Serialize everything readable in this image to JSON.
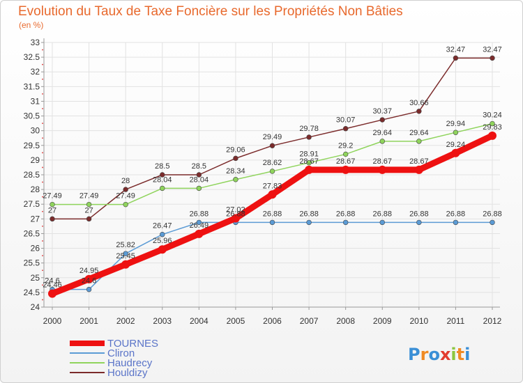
{
  "chart_data": {
    "type": "line",
    "title": "Evolution du Taux de Taxe Foncière sur les Propriétés Non Bâties",
    "subtitle": "(en %)",
    "xlabel": "",
    "ylabel": "",
    "grid": true,
    "categories": [
      "2000",
      "2001",
      "2002",
      "2003",
      "2004",
      "2005",
      "2006",
      "2007",
      "2008",
      "2009",
      "2010",
      "2011",
      "2012"
    ],
    "ylim": [
      24,
      33
    ],
    "yticks": [
      "24",
      "24.5",
      "25",
      "25.5",
      "26",
      "26.5",
      "27",
      "27.5",
      "28",
      "28.5",
      "29",
      "29.5",
      "30",
      "30.5",
      "31",
      "31.5",
      "32",
      "32.5",
      "33"
    ],
    "series": [
      {
        "name": "TOURNES",
        "color": "#ee1111",
        "values": [
          24.46,
          24.95,
          25.45,
          25.96,
          26.49,
          27.02,
          27.83,
          28.67,
          28.67,
          28.67,
          28.67,
          29.24,
          29.83
        ],
        "labels": [
          "24.46",
          "24.95",
          "25.45",
          "25.96",
          "26.49",
          "27.02",
          "27.83",
          "28.67",
          "28.67",
          "28.67",
          "28.67",
          "29.24",
          "29.83"
        ]
      },
      {
        "name": "Cliron",
        "color": "#5b9bd5",
        "values": [
          24.6,
          24.6,
          25.82,
          26.47,
          26.88,
          26.88,
          26.88,
          26.88,
          26.88,
          26.88,
          26.88,
          26.88,
          26.88
        ],
        "labels": [
          "24.6",
          "24.6",
          "25.82",
          "26.47",
          "26.88",
          "26.88",
          "26.88",
          "26.88",
          "26.88",
          "26.88",
          "26.88",
          "26.88",
          "26.88"
        ]
      },
      {
        "name": "Haudrecy",
        "color": "#8fd45c",
        "values": [
          27.49,
          27.49,
          27.49,
          28.04,
          28.04,
          28.34,
          28.62,
          28.91,
          29.2,
          29.64,
          29.64,
          29.94,
          30.24
        ],
        "labels": [
          "27.49",
          "27.49",
          "27.49",
          "28.04",
          "28.04",
          "28.34",
          "28.62",
          "28.91",
          "29.2",
          "29.64",
          "29.64",
          "29.94",
          "30.24"
        ]
      },
      {
        "name": "Houldizy",
        "color": "#7b2b2b",
        "values": [
          27,
          27,
          28,
          28.5,
          28.5,
          29.06,
          29.49,
          29.78,
          30.07,
          30.37,
          30.66,
          32.47,
          32.47
        ],
        "labels": [
          "27",
          "27",
          "28",
          "28.5",
          "28.5",
          "29.06",
          "29.49",
          "29.78",
          "30.07",
          "30.37",
          "30.66",
          "32.47",
          "32.47"
        ]
      }
    ],
    "legend": "bottom-left"
  },
  "logo": {
    "text": "Proxiti",
    "letters": [
      "P",
      "r",
      "o",
      "x",
      "i",
      "t",
      "i"
    ],
    "colors": [
      "#3a8fd6",
      "#f08a24",
      "#3a8fd6",
      "#e23b2e",
      "#8cc63f",
      "#f08a24",
      "#3a8fd6"
    ]
  }
}
